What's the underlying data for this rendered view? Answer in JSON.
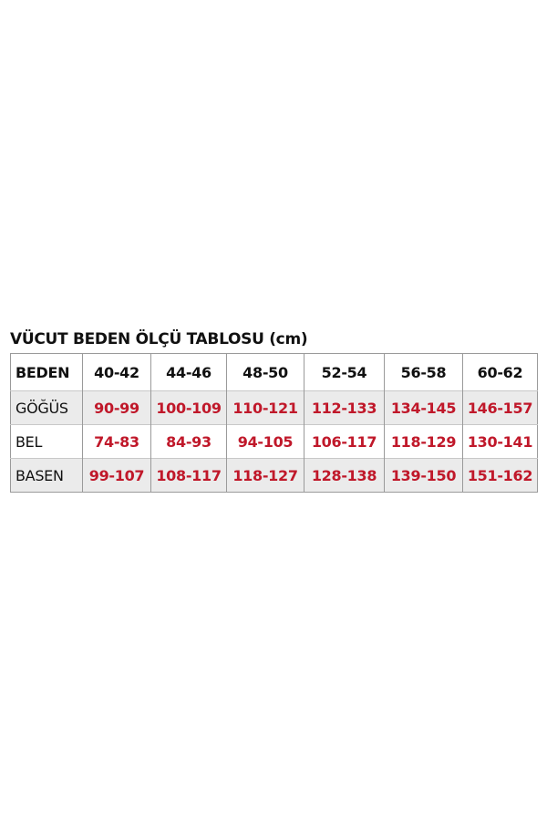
{
  "title": "VÜCUT BEDEN ÖLÇÜ TABLOSU (cm)",
  "colors": {
    "value_text": "#c0182a",
    "label_text": "#111111",
    "shaded_row": "#ebebeb"
  },
  "table": {
    "header": [
      "BEDEN",
      "40-42",
      "44-46",
      "48-50",
      "52-54",
      "56-58",
      "60-62"
    ],
    "rows": [
      [
        "GÖĞÜS",
        "90-99",
        "100-109",
        "110-121",
        "112-133",
        "134-145",
        "146-157"
      ],
      [
        "BEL",
        "74-83",
        "84-93",
        "94-105",
        "106-117",
        "118-129",
        "130-141"
      ],
      [
        "BASEN",
        "99-107",
        "108-117",
        "118-127",
        "128-138",
        "139-150",
        "151-162"
      ]
    ]
  }
}
